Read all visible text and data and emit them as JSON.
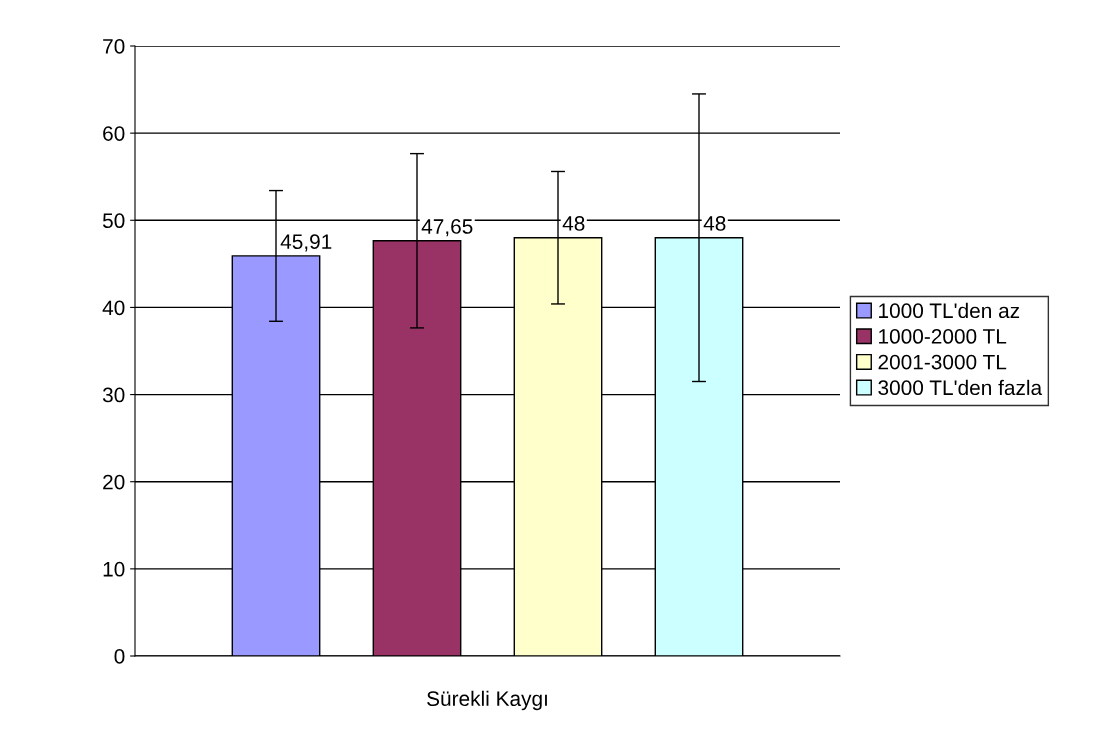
{
  "chart_data": {
    "type": "bar",
    "categories": [
      "Sürekli Kaygı"
    ],
    "series": [
      {
        "name": "1000 TL'den az",
        "color": "#9999ff",
        "values": [
          45.91
        ],
        "value_labels": [
          "45,91"
        ],
        "errors": [
          7.5
        ]
      },
      {
        "name": "1000-2000 TL",
        "color": "#993366",
        "values": [
          47.65
        ],
        "value_labels": [
          "47,65"
        ],
        "errors": [
          10
        ]
      },
      {
        "name": "2001-3000 TL",
        "color": "#ffffcc",
        "values": [
          48
        ],
        "value_labels": [
          "48"
        ],
        "errors": [
          7.6
        ]
      },
      {
        "name": "3000 TL'den fazla",
        "color": "#ccffff",
        "values": [
          48
        ],
        "value_labels": [
          "48"
        ],
        "errors": [
          16.5
        ]
      }
    ],
    "ylim": [
      0,
      70
    ],
    "yticks": [
      0,
      10,
      20,
      30,
      40,
      50,
      60,
      70
    ],
    "grid": "y",
    "legend": "right"
  }
}
